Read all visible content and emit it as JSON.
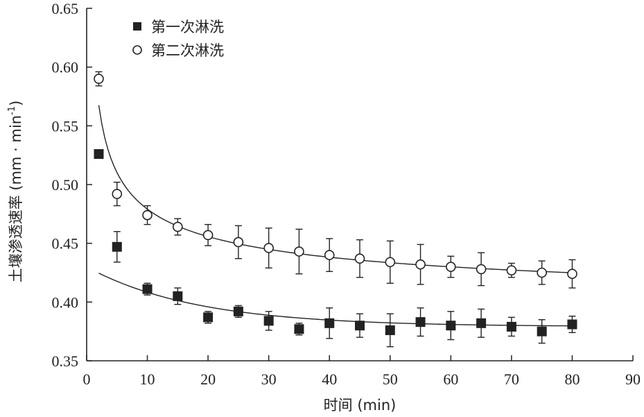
{
  "chart_data": {
    "type": "scatter",
    "title": "",
    "xlabel": "时间 (min)",
    "ylabel_main": "土壤渗透速率 (mm · min",
    "ylabel_sup": "-1",
    "ylabel_close": ")",
    "xlim": [
      0,
      90
    ],
    "ylim": [
      0.35,
      0.65
    ],
    "x_ticks": [
      "0",
      "10",
      "20",
      "30",
      "40",
      "50",
      "60",
      "70",
      "80",
      "90"
    ],
    "y_ticks": [
      "0.35",
      "0.40",
      "0.45",
      "0.50",
      "0.55",
      "0.60",
      "0.65"
    ],
    "grid": false,
    "legend_position": "top-left",
    "series": [
      {
        "name": "第一次淋洗",
        "marker": "filled-square",
        "color": "#222222",
        "x": [
          2,
          5,
          10,
          15,
          20,
          25,
          30,
          35,
          40,
          45,
          50,
          55,
          60,
          65,
          70,
          75,
          80
        ],
        "y": [
          0.526,
          0.447,
          0.411,
          0.405,
          0.387,
          0.392,
          0.384,
          0.377,
          0.382,
          0.38,
          0.376,
          0.383,
          0.38,
          0.382,
          0.379,
          0.375,
          0.381
        ],
        "err": [
          0.003,
          0.013,
          0.005,
          0.007,
          0.005,
          0.005,
          0.008,
          0.005,
          0.013,
          0.01,
          0.014,
          0.012,
          0.012,
          0.012,
          0.008,
          0.01,
          0.007
        ]
      },
      {
        "name": "第二次淋洗",
        "marker": "open-circle",
        "color": "#222222",
        "x": [
          2,
          5,
          10,
          15,
          20,
          25,
          30,
          35,
          40,
          45,
          50,
          55,
          60,
          65,
          70,
          75,
          80
        ],
        "y": [
          0.59,
          0.492,
          0.474,
          0.464,
          0.457,
          0.451,
          0.446,
          0.443,
          0.44,
          0.437,
          0.434,
          0.432,
          0.43,
          0.428,
          0.427,
          0.425,
          0.424
        ],
        "err": [
          0.006,
          0.01,
          0.008,
          0.007,
          0.009,
          0.014,
          0.017,
          0.019,
          0.014,
          0.016,
          0.018,
          0.017,
          0.009,
          0.014,
          0.006,
          0.01,
          0.012
        ]
      }
    ]
  }
}
